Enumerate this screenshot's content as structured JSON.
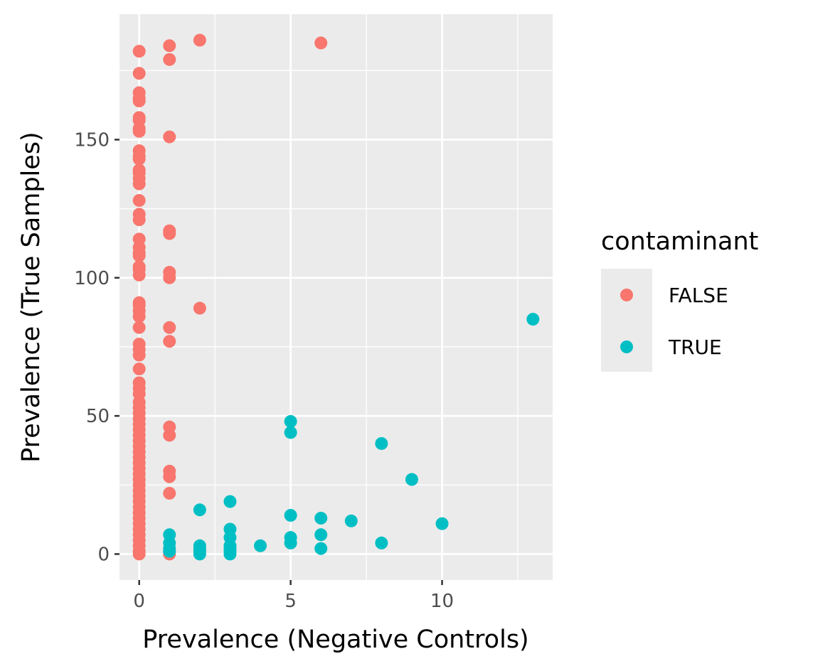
{
  "chart_data": {
    "type": "scatter",
    "title": "",
    "xlabel": "Prevalence (Negative Controls)",
    "ylabel": "Prevalence (True Samples)",
    "xlim": [
      -0.65,
      13.65
    ],
    "ylim": [
      -9.4,
      195.4
    ],
    "x_ticks": [
      0,
      5,
      10
    ],
    "y_ticks": [
      0,
      50,
      100,
      150
    ],
    "grid": true,
    "panel_background": "#ebebeb",
    "legend": {
      "title": "contaminant",
      "placement": "right",
      "entries": [
        {
          "label": "FALSE",
          "color": "#f8766d"
        },
        {
          "label": "TRUE",
          "color": "#00bfc4"
        }
      ]
    },
    "series": [
      {
        "name": "FALSE",
        "color": "#f8766d",
        "points": [
          [
            0,
            182
          ],
          [
            0,
            174
          ],
          [
            0,
            167
          ],
          [
            0,
            165
          ],
          [
            0,
            164
          ],
          [
            0,
            158
          ],
          [
            0,
            157
          ],
          [
            0,
            154
          ],
          [
            0,
            153
          ],
          [
            0,
            146
          ],
          [
            0,
            144
          ],
          [
            0,
            143
          ],
          [
            0,
            139
          ],
          [
            0,
            138
          ],
          [
            0,
            136
          ],
          [
            0,
            134
          ],
          [
            0,
            128
          ],
          [
            0,
            123
          ],
          [
            0,
            121
          ],
          [
            0,
            114
          ],
          [
            0,
            111
          ],
          [
            0,
            109
          ],
          [
            0,
            108
          ],
          [
            0,
            104
          ],
          [
            0,
            103
          ],
          [
            0,
            101
          ],
          [
            0,
            91
          ],
          [
            0,
            90
          ],
          [
            0,
            88
          ],
          [
            0,
            86
          ],
          [
            0,
            82
          ],
          [
            0,
            76
          ],
          [
            0,
            74
          ],
          [
            0,
            72
          ],
          [
            0,
            67
          ],
          [
            0,
            62
          ],
          [
            0,
            60
          ],
          [
            0,
            58
          ],
          [
            0,
            55
          ],
          [
            0,
            53
          ],
          [
            0,
            51
          ],
          [
            0,
            49
          ],
          [
            0,
            47
          ],
          [
            0,
            45
          ],
          [
            0,
            43
          ],
          [
            0,
            41
          ],
          [
            0,
            39
          ],
          [
            0,
            37
          ],
          [
            0,
            35
          ],
          [
            0,
            33
          ],
          [
            0,
            31
          ],
          [
            0,
            29
          ],
          [
            0,
            27
          ],
          [
            0,
            25
          ],
          [
            0,
            23
          ],
          [
            0,
            21
          ],
          [
            0,
            19
          ],
          [
            0,
            17
          ],
          [
            0,
            15
          ],
          [
            0,
            13
          ],
          [
            0,
            11
          ],
          [
            0,
            9
          ],
          [
            0,
            7
          ],
          [
            0,
            5
          ],
          [
            0,
            3
          ],
          [
            0,
            1
          ],
          [
            0,
            0
          ],
          [
            1,
            184
          ],
          [
            1,
            179
          ],
          [
            1,
            151
          ],
          [
            1,
            117
          ],
          [
            1,
            116
          ],
          [
            1,
            102
          ],
          [
            1,
            100
          ],
          [
            1,
            82
          ],
          [
            1,
            77
          ],
          [
            1,
            46
          ],
          [
            1,
            43
          ],
          [
            1,
            30
          ],
          [
            1,
            28
          ],
          [
            1,
            22
          ],
          [
            1,
            0
          ],
          [
            2,
            186
          ],
          [
            2,
            89
          ],
          [
            6,
            185
          ]
        ]
      },
      {
        "name": "TRUE",
        "color": "#00bfc4",
        "points": [
          [
            1,
            7
          ],
          [
            1,
            4
          ],
          [
            1,
            2
          ],
          [
            1,
            1
          ],
          [
            2,
            16
          ],
          [
            2,
            3
          ],
          [
            2,
            2
          ],
          [
            2,
            1
          ],
          [
            2,
            0
          ],
          [
            3,
            19
          ],
          [
            3,
            9
          ],
          [
            3,
            6
          ],
          [
            3,
            3
          ],
          [
            3,
            2
          ],
          [
            3,
            1
          ],
          [
            3,
            0
          ],
          [
            4,
            3
          ],
          [
            5,
            48
          ],
          [
            5,
            44
          ],
          [
            5,
            14
          ],
          [
            5,
            6
          ],
          [
            5,
            4
          ],
          [
            6,
            13
          ],
          [
            6,
            7
          ],
          [
            6,
            2
          ],
          [
            7,
            12
          ],
          [
            8,
            40
          ],
          [
            8,
            4
          ],
          [
            9,
            27
          ],
          [
            10,
            11
          ],
          [
            13,
            85
          ]
        ]
      }
    ]
  }
}
